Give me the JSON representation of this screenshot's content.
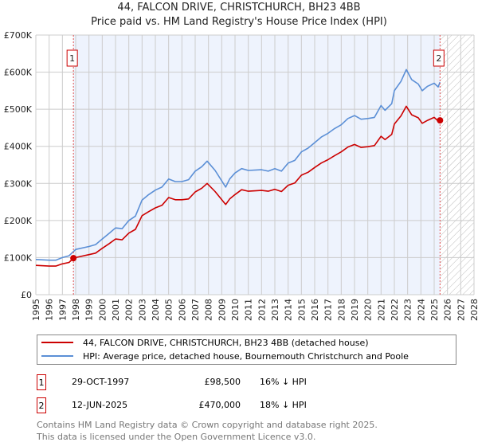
{
  "chart_data": {
    "type": "line",
    "title": "44, FALCON DRIVE, CHRISTCHURCH, BH23 4BB",
    "subtitle": "Price paid vs. HM Land Registry's House Price Index (HPI)",
    "xlim": [
      1995,
      2028
    ],
    "ylim": [
      0,
      700
    ],
    "x_ticks": [
      "1995",
      "1996",
      "1997",
      "1998",
      "1999",
      "2000",
      "2001",
      "2002",
      "2003",
      "2004",
      "2005",
      "2006",
      "2007",
      "2008",
      "2009",
      "2010",
      "2011",
      "2012",
      "2013",
      "2014",
      "2015",
      "2016",
      "2017",
      "2018",
      "2019",
      "2020",
      "2021",
      "2022",
      "2023",
      "2024",
      "2025",
      "2026",
      "2027",
      "2028"
    ],
    "y_ticks": [
      {
        "v": 0,
        "label": "£0"
      },
      {
        "v": 100,
        "label": "£100K"
      },
      {
        "v": 200,
        "label": "£200K"
      },
      {
        "v": 300,
        "label": "£300K"
      },
      {
        "v": 400,
        "label": "£400K"
      },
      {
        "v": 500,
        "label": "£500K"
      },
      {
        "v": 600,
        "label": "£600K"
      },
      {
        "v": 700,
        "label": "£700K"
      }
    ],
    "grid": true,
    "shaded_range": [
      1997.83,
      2025.44
    ],
    "hatched_from": 2025.44,
    "series": [
      {
        "name": "44, FALCON DRIVE, CHRISTCHURCH, BH23 4BB (detached house)",
        "color": "#cc0000",
        "x": [
          1995,
          1996,
          1996.5,
          1997,
          1997.5,
          1997.83,
          1998,
          1999,
          1999.5,
          2000,
          2000.5,
          2001,
          2001.5,
          2002,
          2002.5,
          2003,
          2003.5,
          2004,
          2004.5,
          2005,
          2005.5,
          2006,
          2006.5,
          2007,
          2007.5,
          2007.9,
          2008.5,
          2009.3,
          2009.6,
          2010,
          2010.5,
          2011,
          2012,
          2012.5,
          2013,
          2013.5,
          2014,
          2014.5,
          2015,
          2015.5,
          2016,
          2016.5,
          2017,
          2017.5,
          2018,
          2018.5,
          2019,
          2019.5,
          2020,
          2020.5,
          2021,
          2021.3,
          2021.8,
          2022,
          2022.5,
          2022.9,
          2023.3,
          2023.8,
          2024.1,
          2024.5,
          2025,
          2025.3,
          2025.44
        ],
        "y": [
          79,
          77,
          77,
          83,
          87,
          98.5,
          100,
          108,
          112,
          125,
          137,
          150,
          148,
          166,
          176,
          213,
          224,
          234,
          241,
          262,
          256,
          256,
          258,
          277,
          287,
          300,
          278,
          243,
          258,
          270,
          283,
          279,
          281,
          279,
          284,
          278,
          295,
          301,
          322,
          330,
          343,
          355,
          364,
          375,
          385,
          398,
          405,
          397,
          399,
          402,
          427,
          418,
          432,
          460,
          482,
          508,
          485,
          477,
          462,
          470,
          478,
          468,
          470
        ]
      },
      {
        "name": "HPI: Average price, detached house, Bournemouth Christchurch and Poole",
        "color": "#5b8fd6",
        "x": [
          1995,
          1996,
          1996.5,
          1997,
          1997.5,
          1998,
          1999,
          1999.5,
          2000,
          2000.5,
          2001,
          2001.5,
          2002,
          2002.5,
          2003,
          2003.5,
          2004,
          2004.5,
          2005,
          2005.5,
          2006,
          2006.5,
          2007,
          2007.5,
          2007.9,
          2008.5,
          2009.3,
          2009.6,
          2010,
          2010.5,
          2011,
          2012,
          2012.5,
          2013,
          2013.5,
          2014,
          2014.5,
          2015,
          2015.5,
          2016,
          2016.5,
          2017,
          2017.5,
          2018,
          2018.5,
          2019,
          2019.5,
          2020,
          2020.5,
          2021,
          2021.3,
          2021.8,
          2022,
          2022.5,
          2022.9,
          2023.3,
          2023.8,
          2024.1,
          2024.5,
          2025,
          2025.3,
          2025.44
        ],
        "y": [
          95,
          93,
          93,
          100,
          105,
          122,
          130,
          135,
          150,
          165,
          180,
          178,
          200,
          212,
          255,
          270,
          282,
          290,
          312,
          305,
          305,
          310,
          333,
          345,
          360,
          335,
          290,
          312,
          328,
          340,
          335,
          337,
          333,
          340,
          333,
          355,
          362,
          385,
          395,
          410,
          425,
          435,
          448,
          458,
          475,
          483,
          473,
          475,
          478,
          510,
          497,
          515,
          550,
          575,
          607,
          580,
          568,
          550,
          562,
          570,
          560,
          573
        ]
      }
    ],
    "sales": [
      {
        "id": "1",
        "x": 1997.83,
        "y": 98.5
      },
      {
        "id": "2",
        "x": 2025.44,
        "y": 470
      }
    ]
  },
  "legend": {
    "property": "44, FALCON DRIVE, CHRISTCHURCH, BH23 4BB (detached house)",
    "hpi": "HPI: Average price, detached house, Bournemouth Christchurch and Poole"
  },
  "transactions": [
    {
      "id": "1",
      "date": "29-OCT-1997",
      "price": "£98,500",
      "hpi": "16% ↓ HPI"
    },
    {
      "id": "2",
      "date": "12-JUN-2025",
      "price": "£470,000",
      "hpi": "18% ↓ HPI"
    }
  ],
  "footer": {
    "line1": "Contains HM Land Registry data © Crown copyright and database right 2025.",
    "line2": "This data is licensed under the Open Government Licence v3.0."
  }
}
